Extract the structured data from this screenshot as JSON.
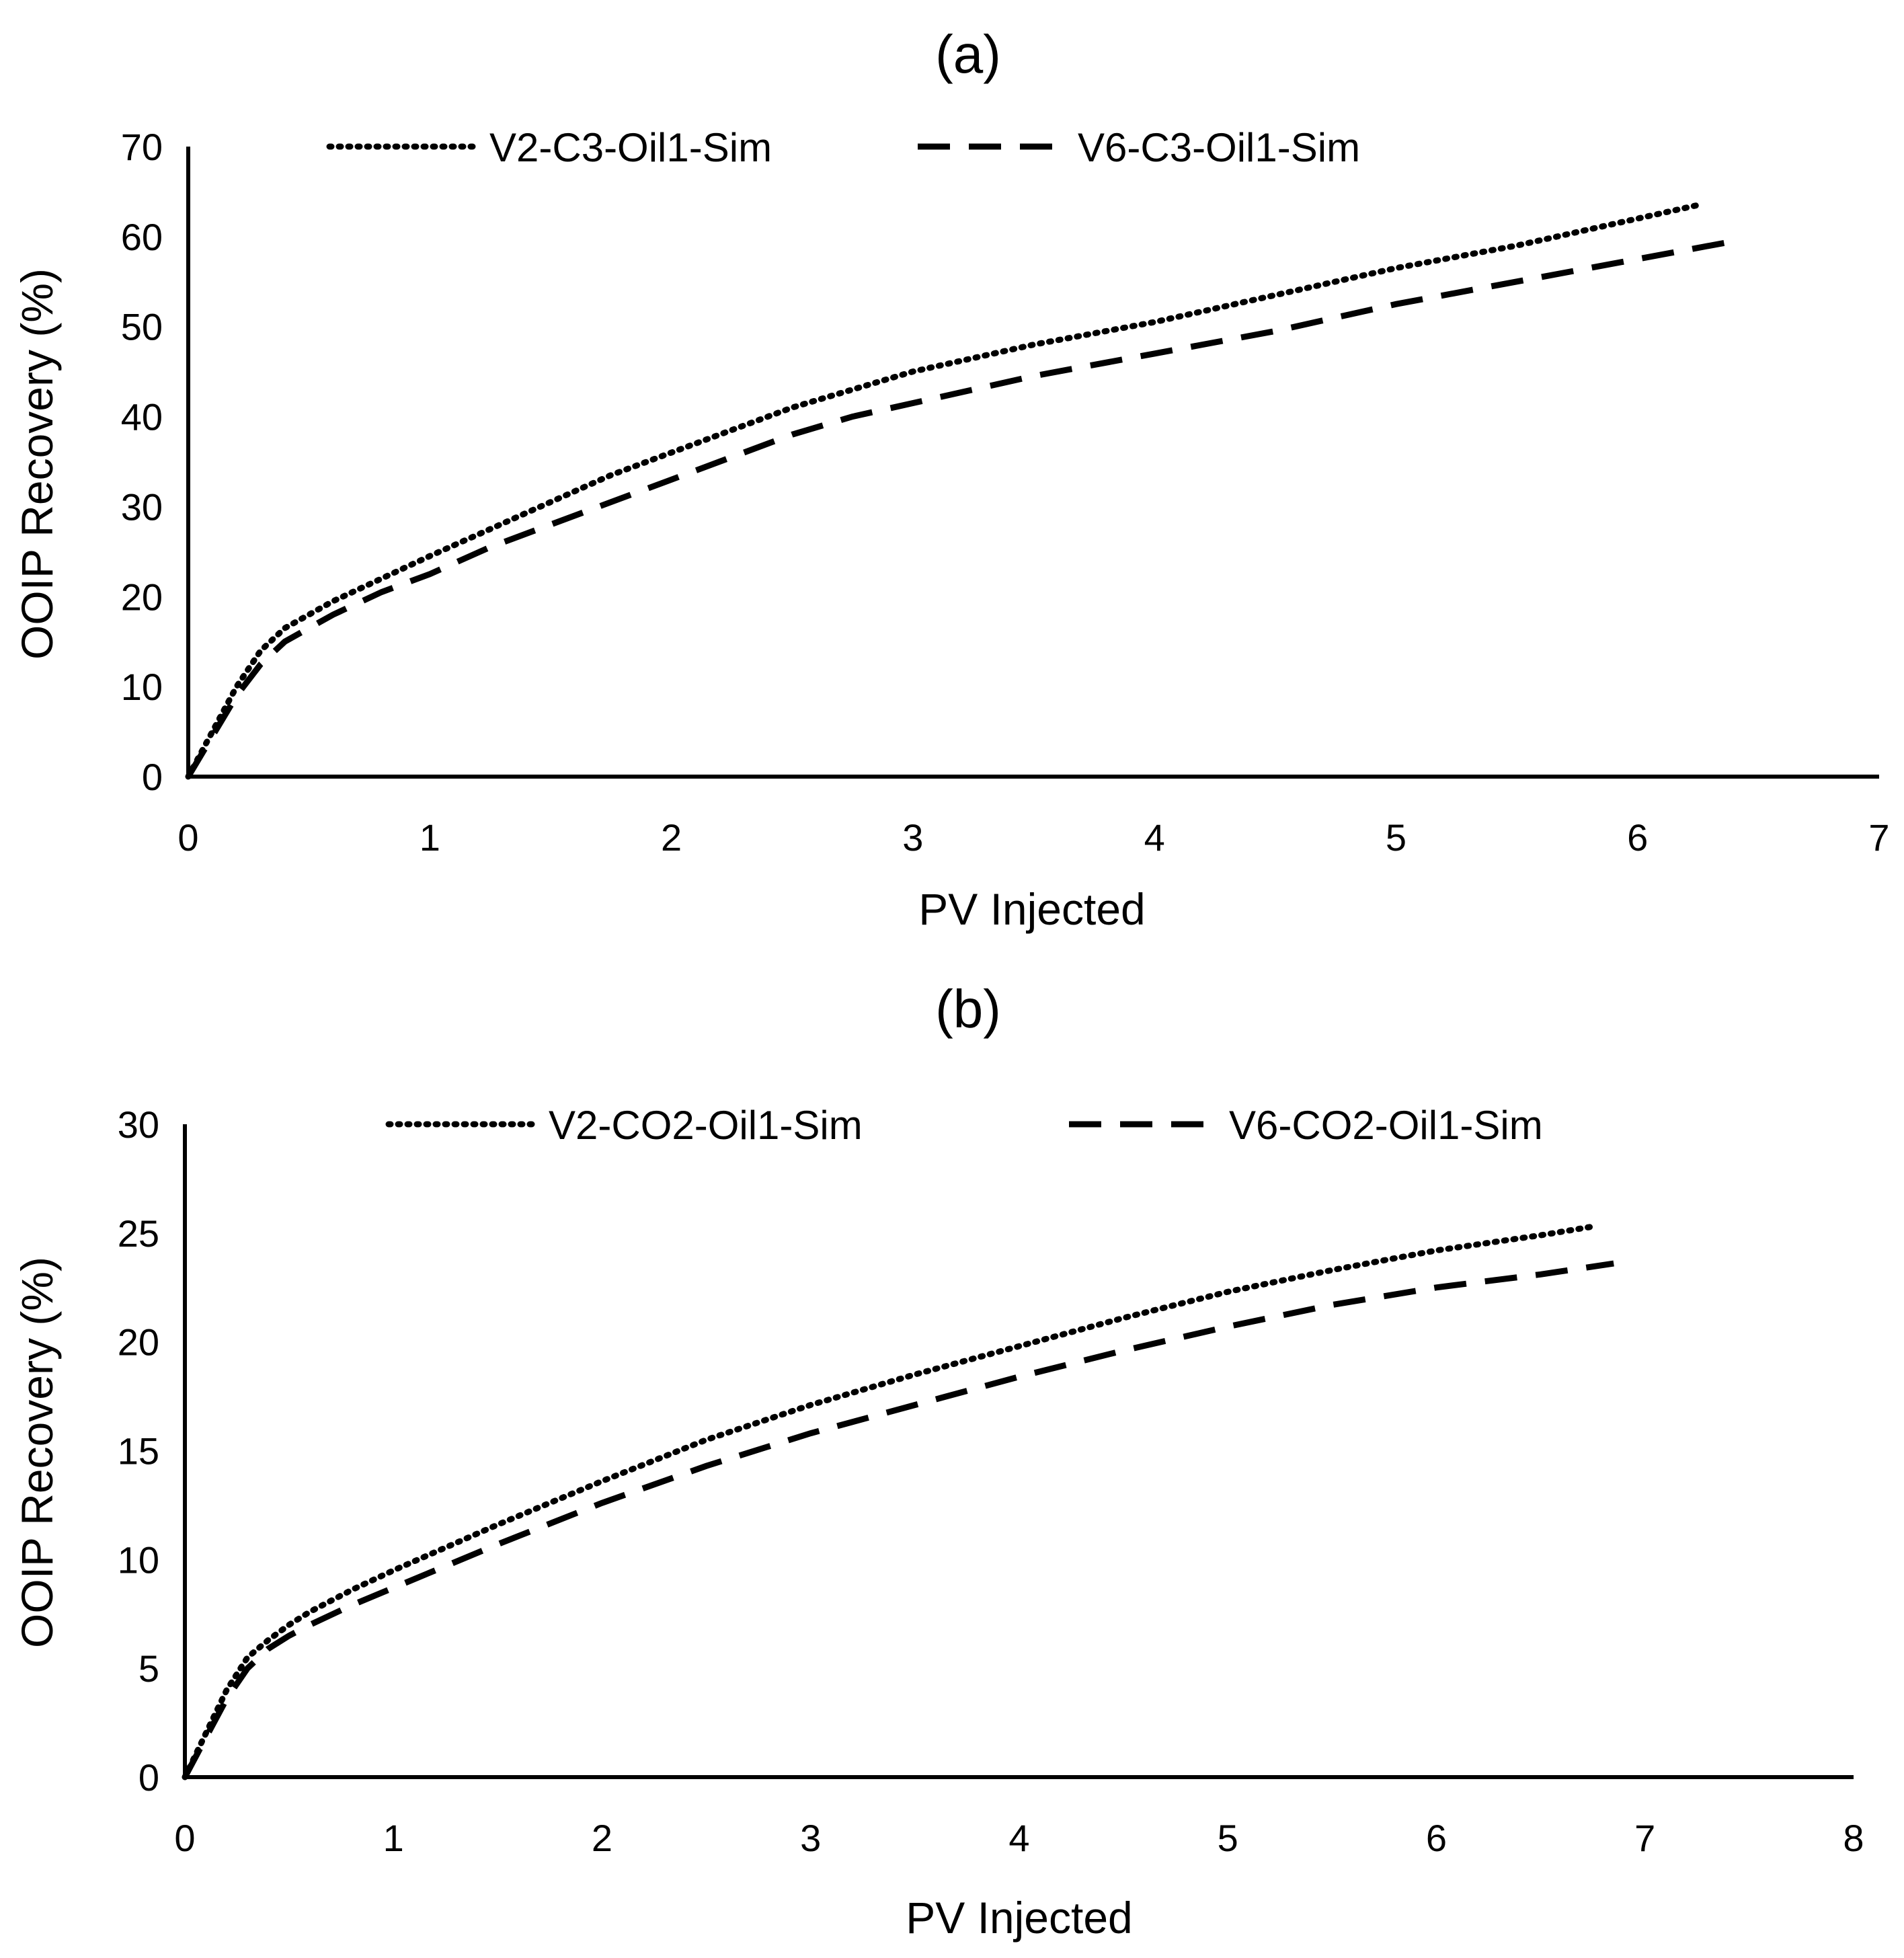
{
  "chart_data": [
    {
      "type": "line",
      "title": "(a)",
      "xlabel": "PV Injected",
      "ylabel": "OOIP Recovery (%)",
      "xlim": [
        0,
        7
      ],
      "ylim": [
        0,
        70
      ],
      "xticks": [
        0,
        1,
        2,
        3,
        4,
        5,
        6,
        7
      ],
      "yticks": [
        0,
        10,
        20,
        30,
        40,
        50,
        60,
        70
      ],
      "legend_position": "top",
      "series": [
        {
          "name": "V2-C3-Oil1-Sim",
          "style": "dotted",
          "x": [
            0,
            0.1,
            0.2,
            0.3,
            0.4,
            0.5,
            0.6,
            0.8,
            1.0,
            1.25,
            1.5,
            1.75,
            2.0,
            2.25,
            2.5,
            2.75,
            3.0,
            3.5,
            4.0,
            4.5,
            5.0,
            5.5,
            6.0,
            6.25
          ],
          "y": [
            0,
            5,
            10,
            14,
            16.5,
            18,
            19.5,
            22,
            24.5,
            27.5,
            30.5,
            33.5,
            36,
            38.5,
            41,
            43,
            45,
            48,
            50.5,
            53.5,
            56.5,
            59,
            62,
            63.5
          ]
        },
        {
          "name": "V6-C3-Oil1-Sim",
          "style": "dashed",
          "x": [
            0,
            0.1,
            0.2,
            0.3,
            0.4,
            0.5,
            0.6,
            0.8,
            1.0,
            1.25,
            1.5,
            1.75,
            2.0,
            2.25,
            2.5,
            2.75,
            3.0,
            3.5,
            4.0,
            4.5,
            5.0,
            5.5,
            6.0,
            6.4
          ],
          "y": [
            0,
            4.5,
            9,
            12.5,
            15,
            16.5,
            18,
            20.5,
            22.5,
            25.5,
            28,
            30.5,
            33,
            35.5,
            38,
            40,
            41.5,
            44.5,
            47,
            49.5,
            52.5,
            55,
            57.5,
            59.5
          ]
        }
      ]
    },
    {
      "type": "line",
      "title": "(b)",
      "xlabel": "PV Injected",
      "ylabel": "OOIP Recovery (%)",
      "xlim": [
        0,
        8
      ],
      "ylim": [
        0,
        30
      ],
      "xticks": [
        0,
        1,
        2,
        3,
        4,
        5,
        6,
        7,
        8
      ],
      "yticks": [
        0,
        5,
        10,
        15,
        20,
        25,
        30
      ],
      "legend_position": "top",
      "series": [
        {
          "name": "V2-CO2-Oil1-Sim",
          "style": "dotted",
          "x": [
            0,
            0.1,
            0.2,
            0.3,
            0.4,
            0.5,
            0.6,
            0.8,
            1.0,
            1.5,
            2.0,
            2.5,
            3.0,
            3.5,
            4.0,
            4.5,
            5.0,
            5.5,
            6.0,
            6.5,
            6.75
          ],
          "y": [
            0,
            2,
            4,
            5.5,
            6.3,
            7,
            7.6,
            8.6,
            9.5,
            11.6,
            13.6,
            15.5,
            17.1,
            18.5,
            19.8,
            21.1,
            22.3,
            23.3,
            24.2,
            24.9,
            25.3
          ]
        },
        {
          "name": "V6-CO2-Oil1-Sim",
          "style": "dashed",
          "x": [
            0,
            0.1,
            0.2,
            0.3,
            0.4,
            0.5,
            0.6,
            0.8,
            1.0,
            1.5,
            2.0,
            2.5,
            3.0,
            3.5,
            4.0,
            4.5,
            5.0,
            5.5,
            6.0,
            6.5,
            6.85
          ],
          "y": [
            0,
            1.8,
            3.6,
            5,
            5.9,
            6.5,
            7,
            7.9,
            8.7,
            10.7,
            12.6,
            14.3,
            15.8,
            17.1,
            18.4,
            19.6,
            20.7,
            21.7,
            22.5,
            23.1,
            23.6
          ]
        }
      ]
    }
  ]
}
